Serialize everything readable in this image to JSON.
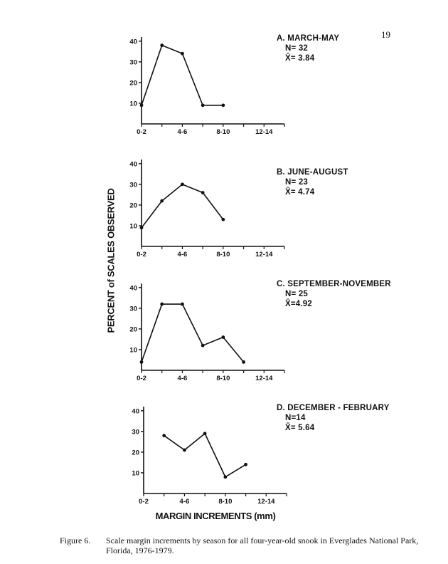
{
  "page_number": "19",
  "caption": {
    "number": "Figure 6.",
    "text": "Scale margin increments by season for all four-year-old snook in Everglades National Park, Florida, 1976-1979."
  },
  "shared_axes": {
    "ylabel": "PERCENT of SCALES OBSERVED",
    "xlabel": "MARGIN INCREMENTS (mm)"
  },
  "chart_data": [
    {
      "type": "line",
      "title": "A. MARCH-MAY",
      "n": "N= 32",
      "mean": "X̄= 3.84",
      "x_ticks": [
        "0-2",
        "4-6",
        "8-10",
        "12-14"
      ],
      "y_ticks": [
        "10",
        "20",
        "30",
        "40"
      ],
      "ylim": [
        0,
        42
      ],
      "xlim": [
        0,
        14
      ],
      "x": [
        0,
        2,
        4,
        6,
        8
      ],
      "y": [
        9,
        38,
        34,
        9,
        9
      ]
    },
    {
      "type": "line",
      "title": "B. JUNE-AUGUST",
      "n": "N= 23",
      "mean": "X̄= 4.74",
      "x_ticks": [
        "0-2",
        "4-6",
        "8-10",
        "12-14"
      ],
      "y_ticks": [
        "10",
        "20",
        "30",
        "40"
      ],
      "ylim": [
        0,
        42
      ],
      "xlim": [
        0,
        14
      ],
      "x": [
        0,
        2,
        4,
        6,
        8
      ],
      "y": [
        9,
        22,
        30,
        26,
        13
      ]
    },
    {
      "type": "line",
      "title": "C. SEPTEMBER-NOVEMBER",
      "n": "N= 25",
      "mean": "X̄=4.92",
      "x_ticks": [
        "0-2",
        "4-6",
        "8-10",
        "12-14"
      ],
      "y_ticks": [
        "10",
        "20",
        "30",
        "40"
      ],
      "ylim": [
        0,
        42
      ],
      "xlim": [
        0,
        14
      ],
      "x": [
        0,
        2,
        4,
        6,
        8,
        10
      ],
      "y": [
        4,
        32,
        32,
        12,
        16,
        4
      ]
    },
    {
      "type": "line",
      "title": "D. DECEMBER - FEBRUARY",
      "n": "N=14",
      "mean": "X̄= 5.64",
      "x_ticks": [
        "0-2",
        "4-6",
        "8-10",
        "12-14"
      ],
      "y_ticks": [
        "10",
        "20",
        "30",
        "40"
      ],
      "ylim": [
        0,
        42
      ],
      "xlim": [
        0,
        14
      ],
      "x": [
        2,
        4,
        6,
        8,
        10
      ],
      "y": [
        28,
        21,
        29,
        8,
        14
      ]
    }
  ]
}
